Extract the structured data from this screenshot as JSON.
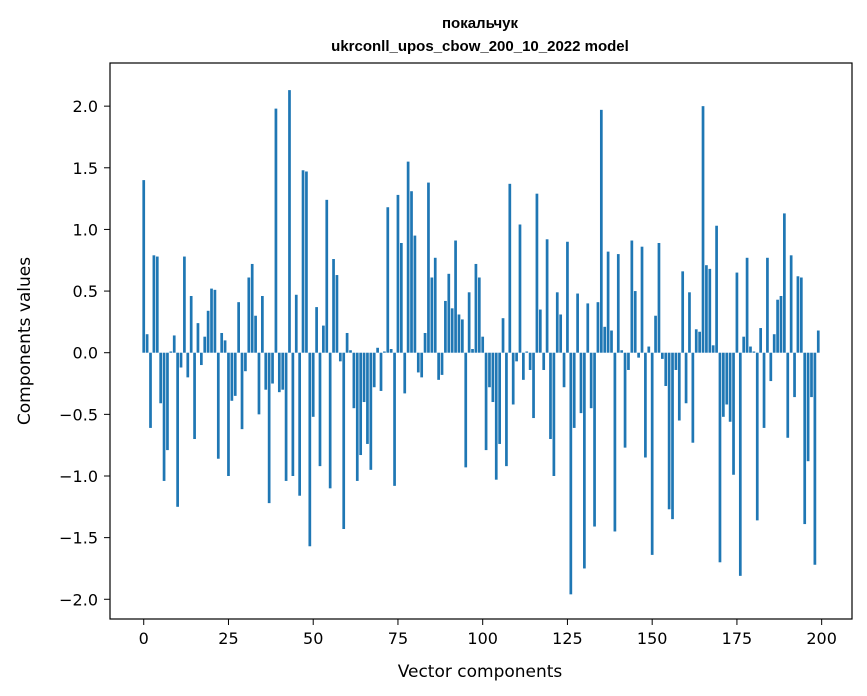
{
  "chart_data": {
    "type": "bar",
    "title": "покальчук",
    "subtitle": "ukrconll_upos_cbow_200_10_2022 model",
    "xlabel": "Vector components",
    "ylabel": "Components values",
    "xlim": [
      -9.95,
      208.95
    ],
    "ylim": [
      -2.16,
      2.35
    ],
    "x_ticks": [
      0,
      25,
      50,
      75,
      100,
      125,
      150,
      175,
      200
    ],
    "y_ticks": [
      -2.0,
      -1.5,
      -1.0,
      -0.5,
      0.0,
      0.5,
      1.0,
      1.5,
      2.0
    ],
    "x_tick_labels": [
      "0",
      "25",
      "50",
      "75",
      "100",
      "125",
      "150",
      "175",
      "200"
    ],
    "y_tick_labels": [
      "−2.0",
      "−1.5",
      "−1.0",
      "−0.5",
      "0.0",
      "0.5",
      "1.0",
      "1.5",
      "2.0"
    ],
    "bar_color": "#1f77b4",
    "grid": false,
    "legend": "none",
    "values": [
      1.4,
      0.15,
      -0.61,
      0.79,
      0.78,
      -0.41,
      -1.04,
      -0.79,
      0.01,
      0.14,
      -1.25,
      -0.12,
      0.78,
      -0.2,
      0.46,
      -0.7,
      0.24,
      -0.1,
      0.13,
      0.34,
      0.52,
      0.51,
      -0.86,
      0.16,
      0.1,
      -1.0,
      -0.39,
      -0.35,
      0.41,
      -0.62,
      -0.15,
      0.61,
      0.72,
      0.3,
      -0.5,
      0.46,
      -0.3,
      -1.22,
      -0.25,
      1.98,
      -0.32,
      -0.3,
      -1.04,
      2.13,
      -1.0,
      0.47,
      -1.16,
      1.48,
      1.47,
      -1.57,
      -0.52,
      0.37,
      -0.92,
      0.22,
      1.24,
      -1.1,
      0.76,
      0.63,
      -0.07,
      -1.43,
      0.16,
      0.02,
      -0.45,
      -1.04,
      -0.83,
      -0.4,
      -0.74,
      -0.95,
      -0.28,
      0.04,
      -0.31,
      0.01,
      1.18,
      0.03,
      -1.08,
      1.28,
      0.89,
      -0.33,
      1.55,
      1.31,
      0.95,
      -0.16,
      -0.2,
      0.16,
      1.38,
      0.61,
      0.77,
      -0.22,
      -0.18,
      0.42,
      0.64,
      0.36,
      0.91,
      0.31,
      0.27,
      -0.93,
      0.49,
      0.03,
      0.72,
      0.61,
      0.13,
      -0.79,
      -0.28,
      -0.4,
      -1.03,
      -0.74,
      0.28,
      -0.92,
      1.37,
      -0.42,
      -0.07,
      1.04,
      -0.22,
      0.01,
      -0.14,
      -0.53,
      1.29,
      0.35,
      -0.14,
      0.92,
      -0.7,
      -1.0,
      0.49,
      0.31,
      -0.28,
      0.9,
      -1.96,
      -0.61,
      0.48,
      -0.49,
      -1.75,
      0.4,
      -0.45,
      -1.41,
      0.41,
      1.97,
      0.21,
      0.82,
      0.18,
      -1.45,
      0.8,
      0.02,
      -0.77,
      -0.14,
      0.91,
      0.5,
      -0.04,
      0.86,
      -0.85,
      0.05,
      -1.64,
      0.3,
      0.89,
      -0.05,
      -0.27,
      -1.27,
      -1.35,
      -0.14,
      -0.55,
      0.66,
      -0.41,
      0.49,
      -0.73,
      0.19,
      0.17,
      2.0,
      0.71,
      0.68,
      0.06,
      1.03,
      -1.7,
      -0.52,
      -0.42,
      -0.56,
      -0.99,
      0.65,
      -1.81,
      0.13,
      0.77,
      0.05,
      0.01,
      -1.36,
      0.2,
      -0.61,
      0.77,
      -0.23,
      0.15,
      0.43,
      0.46,
      1.13,
      -0.69,
      0.79,
      -0.36,
      0.62,
      0.61,
      -1.39,
      -0.88,
      -0.36,
      -1.72,
      0.18
    ]
  }
}
